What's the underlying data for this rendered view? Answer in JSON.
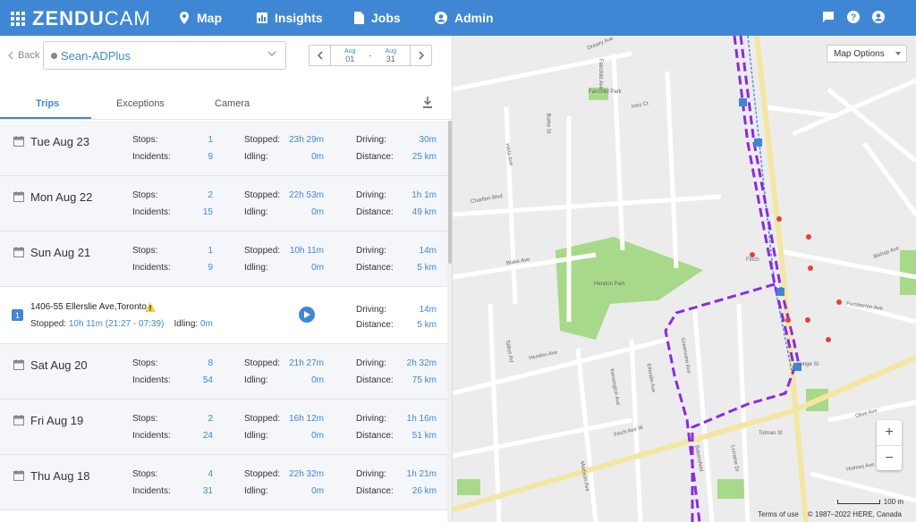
{
  "app": {
    "logo_main": "ZENDU",
    "logo_sub": "CAM",
    "nav": [
      "Map",
      "Insights",
      "Jobs",
      "Admin"
    ]
  },
  "toolbar": {
    "back_label": "Back",
    "vehicle": "Sean-ADPlus",
    "date_from_month": "Aug",
    "date_from_day": "01",
    "date_sep": "-",
    "date_to_month": "Aug",
    "date_to_day": "31"
  },
  "tabs": [
    "Trips",
    "Exceptions",
    "Camera"
  ],
  "labels": {
    "stops": "Stops:",
    "incidents": "Incidents:",
    "stopped": "Stopped:",
    "idling": "Idling:",
    "driving": "Driving:",
    "distance": "Distance:"
  },
  "days": [
    {
      "date": "Tue Aug 23",
      "stops": "1",
      "incidents": "9",
      "stopped": "23h 29m",
      "idling": "0m",
      "driving": "30m",
      "distance": "25 km"
    },
    {
      "date": "Mon Aug 22",
      "stops": "2",
      "incidents": "15",
      "stopped": "22h 53m",
      "idling": "0m",
      "driving": "1h 1m",
      "distance": "49 km"
    },
    {
      "date": "Sun Aug 21",
      "stops": "1",
      "incidents": "9",
      "stopped": "10h 11m",
      "idling": "0m",
      "driving": "14m",
      "distance": "5 km"
    },
    {
      "date": "Sat Aug 20",
      "stops": "8",
      "incidents": "54",
      "stopped": "21h 27m",
      "idling": "0m",
      "driving": "2h 32m",
      "distance": "75 km"
    },
    {
      "date": "Fri Aug 19",
      "stops": "2",
      "incidents": "24",
      "stopped": "16h 12m",
      "idling": "0m",
      "driving": "1h 16m",
      "distance": "51 km"
    },
    {
      "date": "Thu Aug 18",
      "stops": "4",
      "incidents": "31",
      "stopped": "22h 32m",
      "idling": "0m",
      "driving": "1h 21m",
      "distance": "26 km"
    }
  ],
  "trip": {
    "number": "1",
    "address": "1406-55 Ellerslie Ave,Toronto",
    "stopped_label": "Stopped:",
    "stopped_value": "10h 11m (21:27 - 07:39)",
    "idling_label": "Idling:",
    "idling_value": "0m",
    "driving": "14m",
    "distance": "5 km"
  },
  "map": {
    "options_label": "Map Options",
    "zoom_in": "+",
    "zoom_out": "−",
    "scale": "100 m",
    "terms": "Terms of use",
    "copyright": "© 1987–2022 HERE, Canada",
    "labels": [
      "Drewry Ave",
      "Fairchild Ave",
      "Fairchild Park",
      "Inez Ct",
      "Burke St",
      "Hilda Ave",
      "Charlton Blvd",
      "Talbot Rd",
      "Hendon Ave",
      "Hendon Park",
      "Blake Ave",
      "Finch Ave W",
      "Kensington Ave",
      "Ellerslie Ave",
      "Pemberton Ave",
      "Bishop Ave",
      "Olive Ave",
      "Tolman St",
      "Holmes Ave",
      "Finch",
      "Yonge St",
      "Lorraine Dr",
      "Madison Ave",
      "Greenview Ave",
      "Bakersfield"
    ],
    "accent": "#8a2be2"
  },
  "colors": {
    "brand": "#3f87d4",
    "route": "#8a2be2",
    "park": "#a8d98a"
  }
}
